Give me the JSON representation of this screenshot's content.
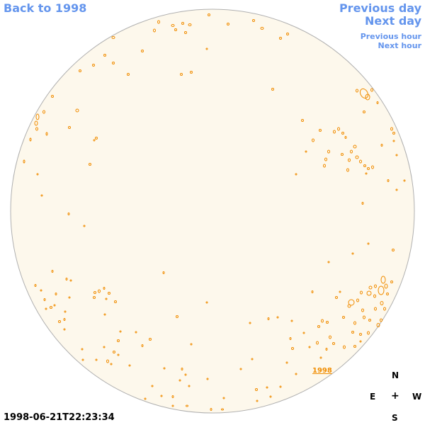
{
  "nav": {
    "back_label": "Back to 1998",
    "prev_day_label": "Previous day",
    "next_day_label": "Next day",
    "prev_hour_label": "Previous hour",
    "next_hour_label": "Next hour"
  },
  "timestamp": "1998-06-21T22:23:34",
  "year_mark": "1998",
  "compass": {
    "n": "N",
    "e": "E",
    "center": "+",
    "w": "W",
    "s": "S"
  },
  "colors": {
    "disk_fill": "#fdf8ec",
    "disk_stroke": "#b0b0b0",
    "contour": "#f08c00",
    "link": "#6495ed"
  }
}
